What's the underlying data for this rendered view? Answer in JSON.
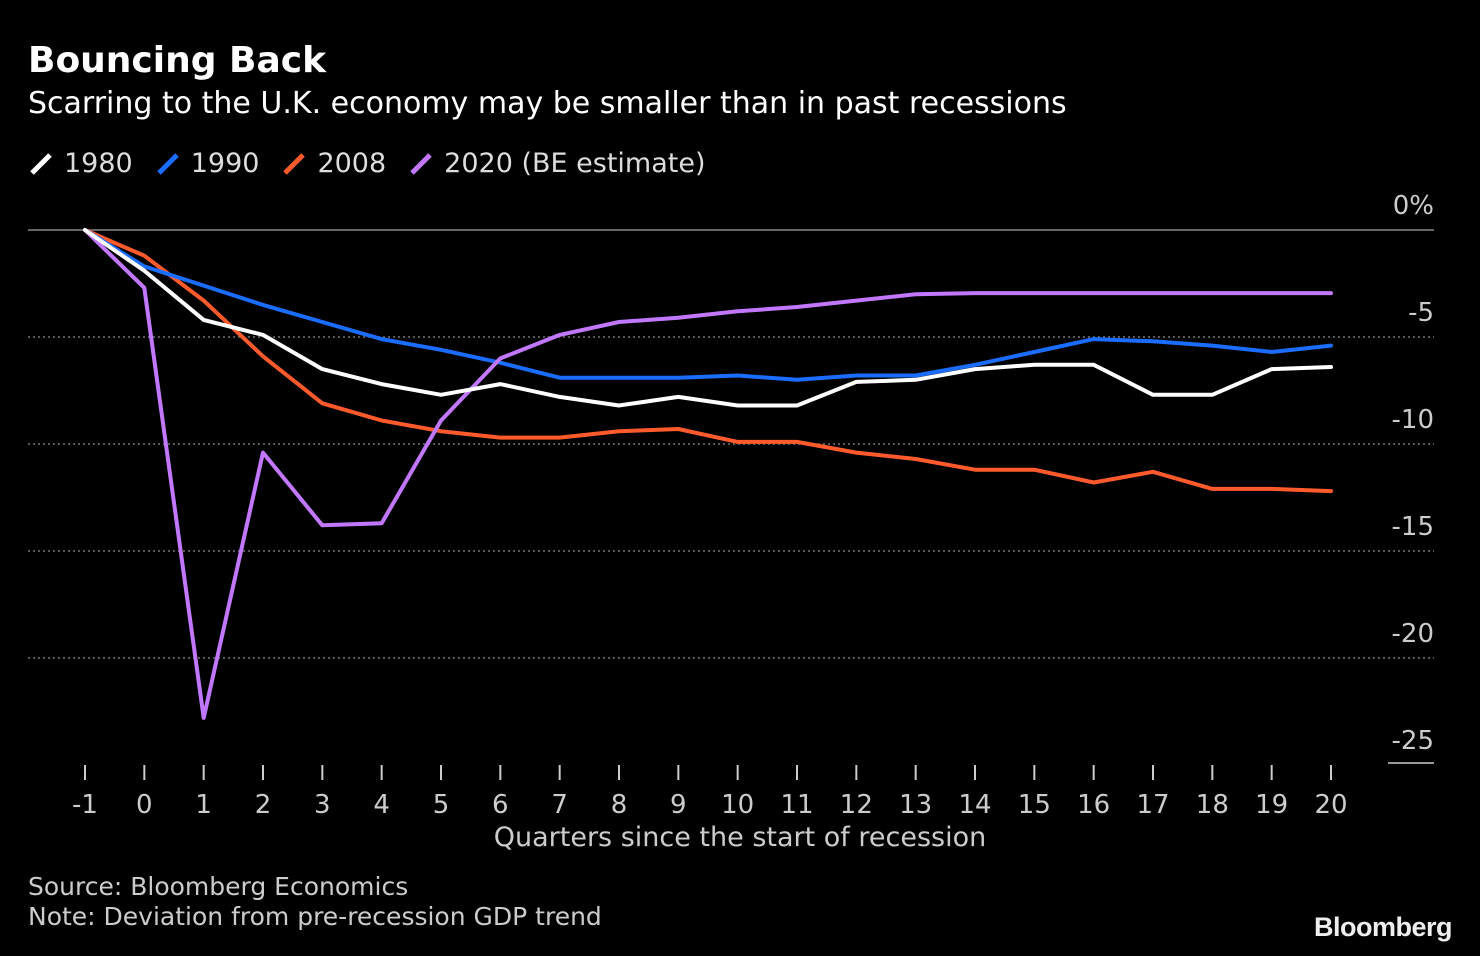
{
  "header": {
    "title": "Bouncing Back",
    "subtitle": "Scarring to the U.K. economy may be smaller than in past recessions"
  },
  "legend": [
    {
      "label": "1980",
      "color": "#ffffff"
    },
    {
      "label": "1990",
      "color": "#1a6dff"
    },
    {
      "label": "2008",
      "color": "#ff5a2b"
    },
    {
      "label": "2020 (BE estimate)",
      "color": "#c277ff"
    }
  ],
  "footer": {
    "source": "Source: Bloomberg Economics",
    "note": "Note: Deviation from pre-recession GDP trend",
    "logo": "Bloomberg"
  },
  "chart_data": {
    "type": "line",
    "xlabel": "Quarters since the start of recession",
    "ylabel": "",
    "x": [
      -1,
      0,
      1,
      2,
      3,
      4,
      5,
      6,
      7,
      8,
      9,
      10,
      11,
      12,
      13,
      14,
      15,
      16,
      17,
      18,
      19,
      20
    ],
    "xticks": [
      "-1",
      "0",
      "1",
      "2",
      "3",
      "4",
      "5",
      "6",
      "7",
      "8",
      "9",
      "10",
      "11",
      "12",
      "13",
      "14",
      "15",
      "16",
      "17",
      "18",
      "19",
      "20"
    ],
    "yticks": [
      {
        "value": 0,
        "label": "0%"
      },
      {
        "value": -5,
        "label": "-5"
      },
      {
        "value": -10,
        "label": "-10"
      },
      {
        "value": -15,
        "label": "-15"
      },
      {
        "value": -20,
        "label": "-20"
      },
      {
        "value": -25,
        "label": "-25"
      }
    ],
    "ylim": [
      -25,
      0
    ],
    "grid": true,
    "series": [
      {
        "name": "1980",
        "color": "#ffffff",
        "values": [
          0,
          -1.9,
          -4.2,
          -4.9,
          -6.5,
          -7.2,
          -7.7,
          -7.2,
          -7.8,
          -8.2,
          -7.8,
          -8.2,
          -8.2,
          -7.1,
          -7.0,
          -6.5,
          -6.3,
          -6.3,
          -7.7,
          -7.7,
          -6.5,
          -6.4
        ]
      },
      {
        "name": "1990",
        "color": "#1a6dff",
        "values": [
          0,
          -1.7,
          -2.6,
          -3.5,
          -4.3,
          -5.1,
          -5.6,
          -6.2,
          -6.9,
          -6.9,
          -6.9,
          -6.8,
          -7.0,
          -6.8,
          -6.8,
          -6.3,
          -5.7,
          -5.1,
          -5.2,
          -5.4,
          -5.7,
          -5.4
        ]
      },
      {
        "name": "2008",
        "color": "#ff5a2b",
        "values": [
          0,
          -1.2,
          -3.3,
          -5.9,
          -8.1,
          -8.9,
          -9.4,
          -9.7,
          -9.7,
          -9.4,
          -9.3,
          -9.9,
          -9.9,
          -10.4,
          -10.7,
          -11.2,
          -11.2,
          -11.8,
          -11.3,
          -12.1,
          -12.1,
          -12.2
        ]
      },
      {
        "name": "2020 (BE estimate)",
        "color": "#c277ff",
        "values": [
          0,
          -2.7,
          -22.8,
          -10.4,
          -13.8,
          -13.7,
          -8.9,
          -6.0,
          -4.9,
          -4.3,
          -4.1,
          -3.8,
          -3.6,
          -3.3,
          -3.0,
          -2.95,
          -2.95,
          -2.95,
          -2.95,
          -2.95,
          -2.95,
          -2.95
        ]
      }
    ]
  }
}
